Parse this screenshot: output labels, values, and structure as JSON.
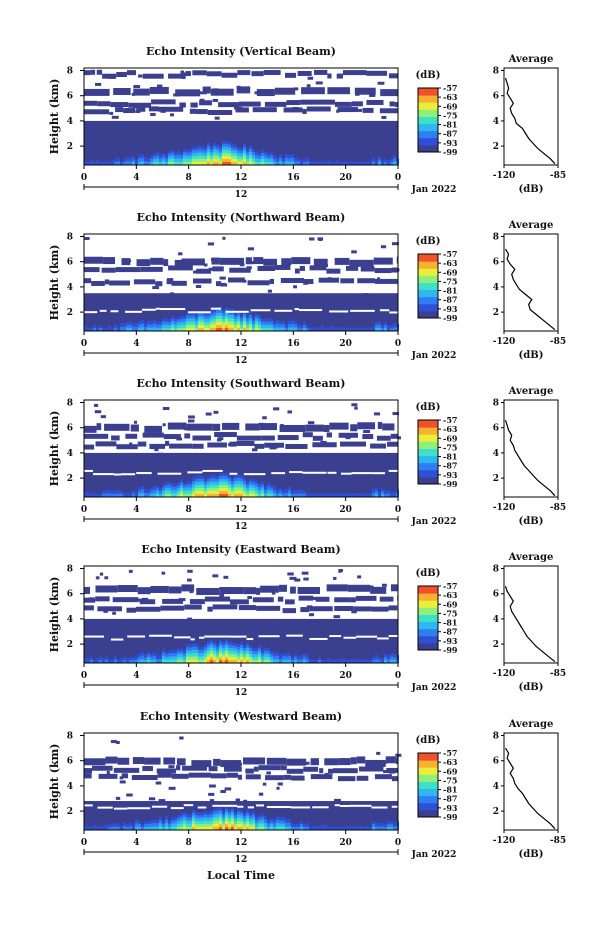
{
  "common": {
    "xlabel": "Local Time",
    "ylabel": "Height (km)",
    "date_label": "Jan 2022",
    "date_day": "12",
    "x_ticks": [
      "0",
      "4",
      "8",
      "12",
      "16",
      "20",
      "0"
    ],
    "y_ticks": [
      "2",
      "4",
      "6",
      "8"
    ],
    "colorbar_unit": "(dB)",
    "colorbar_ticks": [
      "-57",
      "-63",
      "-69",
      "-75",
      "-81",
      "-87",
      "-93",
      "-99"
    ],
    "avg_title": "Average",
    "avg_xlabel": "(dB)",
    "avg_x_ticks": [
      "-120",
      "-85"
    ],
    "colormap": [
      "#3b3f8f",
      "#2f4fd6",
      "#2f7ff2",
      "#2fb7f0",
      "#3fe0c8",
      "#8ef07a",
      "#e8ee3a",
      "#f8b030",
      "#f0502a"
    ]
  },
  "chart_data": [
    {
      "type": "heatmap",
      "title": "Echo Intensity (Vertical Beam)",
      "xlim": [
        0,
        24
      ],
      "ylim": [
        0.5,
        8.2
      ],
      "clim": [
        -99,
        -57
      ],
      "fill_top_km": 4.0,
      "layers_km": [
        6.6,
        5.6,
        5.0,
        7.9
      ],
      "average": {
        "title": "Average",
        "xlim": [
          -120,
          -85
        ],
        "ylim": [
          0.5,
          8.2
        ],
        "x_db": [
          -87,
          -90,
          -94,
          -98,
          -101,
          -104,
          -106,
          -108,
          -112,
          -113,
          -115,
          -116,
          -114,
          -116,
          -118,
          -117,
          -118,
          -119
        ],
        "y_km": [
          0.6,
          1.0,
          1.4,
          1.8,
          2.2,
          2.6,
          3.0,
          3.4,
          3.8,
          4.2,
          4.6,
          5.0,
          5.4,
          5.8,
          6.2,
          6.6,
          7.0,
          7.4
        ]
      }
    },
    {
      "type": "heatmap",
      "title": "Echo Intensity (Northward Beam)",
      "xlim": [
        0,
        24
      ],
      "ylim": [
        0.5,
        8.2
      ],
      "clim": [
        -99,
        -57
      ],
      "fill_top_km": 3.5,
      "layers_km": [
        6.3,
        5.6,
        4.6,
        2.2
      ],
      "average": {
        "title": "Average",
        "xlim": [
          -120,
          -85
        ],
        "ylim": [
          0.5,
          8.2
        ],
        "x_db": [
          -87,
          -91,
          -95,
          -99,
          -103,
          -104,
          -102,
          -106,
          -110,
          -112,
          -114,
          -115,
          -113,
          -116,
          -118,
          -117,
          -119
        ],
        "y_km": [
          0.6,
          1.0,
          1.4,
          1.8,
          2.2,
          2.6,
          3.0,
          3.4,
          3.8,
          4.2,
          4.6,
          5.0,
          5.4,
          5.8,
          6.2,
          6.6,
          7.0
        ]
      }
    },
    {
      "type": "heatmap",
      "title": "Echo Intensity (Southward Beam)",
      "xlim": [
        0,
        24
      ],
      "ylim": [
        0.5,
        8.2
      ],
      "clim": [
        -99,
        -57
      ],
      "fill_top_km": 4.0,
      "layers_km": [
        6.3,
        5.5,
        4.8,
        2.5
      ],
      "average": {
        "title": "Average",
        "xlim": [
          -120,
          -85
        ],
        "ylim": [
          0.5,
          8.2
        ],
        "x_db": [
          -87,
          -90,
          -94,
          -98,
          -101,
          -104,
          -107,
          -109,
          -111,
          -113,
          -114,
          -116,
          -115,
          -117,
          -118,
          -119
        ],
        "y_km": [
          0.6,
          1.0,
          1.4,
          1.8,
          2.2,
          2.6,
          3.0,
          3.4,
          3.8,
          4.2,
          4.6,
          5.0,
          5.4,
          5.8,
          6.2,
          6.6
        ]
      }
    },
    {
      "type": "heatmap",
      "title": "Echo Intensity (Eastward Beam)",
      "xlim": [
        0,
        24
      ],
      "ylim": [
        0.5,
        8.2
      ],
      "clim": [
        -99,
        -57
      ],
      "fill_top_km": 4.0,
      "layers_km": [
        6.6,
        5.7,
        5.0,
        2.6
      ],
      "average": {
        "title": "Average",
        "xlim": [
          -120,
          -85
        ],
        "ylim": [
          0.5,
          8.2
        ],
        "x_db": [
          -87,
          -91,
          -95,
          -99,
          -102,
          -105,
          -107,
          -109,
          -111,
          -113,
          -115,
          -116,
          -114,
          -116,
          -118,
          -119
        ],
        "y_km": [
          0.6,
          1.0,
          1.4,
          1.8,
          2.2,
          2.6,
          3.0,
          3.4,
          3.8,
          4.2,
          4.6,
          5.0,
          5.4,
          5.8,
          6.2,
          6.6
        ]
      }
    },
    {
      "type": "heatmap",
      "title": "Echo Intensity (Westward Beam)",
      "xlim": [
        0,
        24
      ],
      "ylim": [
        0.5,
        8.2
      ],
      "clim": [
        -99,
        -57
      ],
      "fill_top_km": 2.8,
      "layers_km": [
        6.2,
        5.5,
        4.9,
        2.4
      ],
      "average": {
        "title": "Average",
        "xlim": [
          -120,
          -85
        ],
        "ylim": [
          0.5,
          8.2
        ],
        "x_db": [
          -87,
          -90,
          -94,
          -98,
          -101,
          -104,
          -106,
          -108,
          -111,
          -113,
          -114,
          -116,
          -114,
          -116,
          -118,
          -117,
          -119
        ],
        "y_km": [
          0.6,
          1.0,
          1.4,
          1.8,
          2.2,
          2.6,
          3.0,
          3.4,
          3.8,
          4.2,
          4.6,
          5.0,
          5.4,
          5.8,
          6.2,
          6.6,
          7.0
        ]
      }
    }
  ]
}
